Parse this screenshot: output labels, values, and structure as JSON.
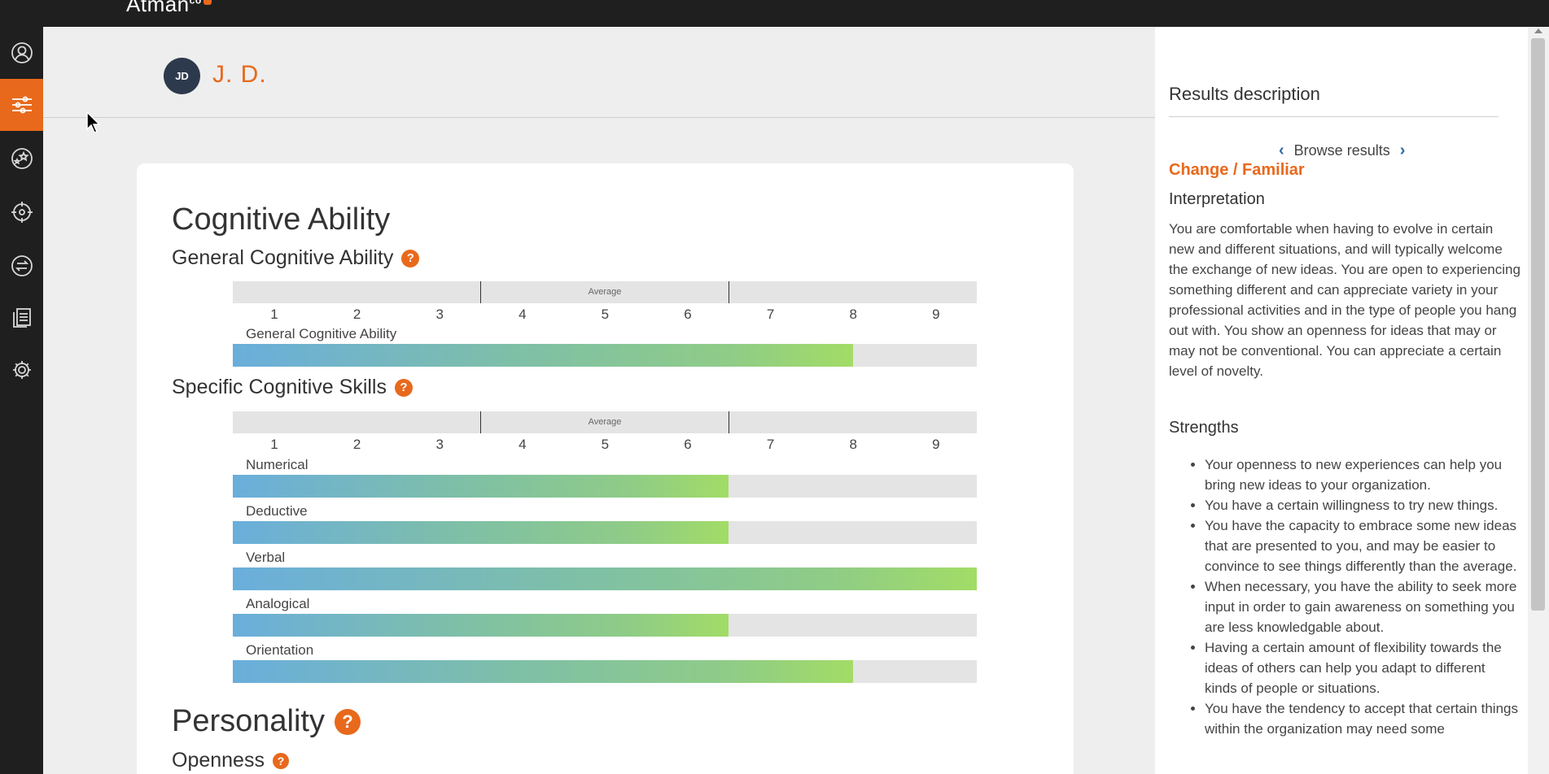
{
  "app": {
    "brand": "Atman",
    "brand_sup": "co"
  },
  "colors": {
    "accent": "#e8691c",
    "sidebar": "#1f1f1f",
    "avatar": "#2d3a4d",
    "nav_chevron": "#2f66a8"
  },
  "sidebar": {
    "items": [
      {
        "icon": "profile-icon",
        "active": false
      },
      {
        "icon": "sliders-icon",
        "active": true
      },
      {
        "icon": "stars-icon",
        "active": false
      },
      {
        "icon": "target-icon",
        "active": false
      },
      {
        "icon": "compare-icon",
        "active": false
      },
      {
        "icon": "documents-icon",
        "active": false
      },
      {
        "icon": "gear-icon",
        "active": false
      }
    ]
  },
  "header": {
    "avatar_initials": "JD",
    "user_name": "J. D."
  },
  "main": {
    "cognitive_title": "Cognitive Ability",
    "general_title": "General Cognitive Ability",
    "specific_title": "Specific Cognitive Skills",
    "personality_title": "Personality",
    "openness_title": "Openness",
    "help_glyph": "?",
    "scale": {
      "average_label": "Average",
      "ticks": [
        "1",
        "2",
        "3",
        "4",
        "5",
        "6",
        "7",
        "8",
        "9"
      ]
    },
    "general_bars": [
      {
        "label": "General Cognitive Ability",
        "score": 7.5,
        "max": 9
      }
    ],
    "specific_bars": [
      {
        "label": "Numerical",
        "score": 6,
        "max": 9
      },
      {
        "label": "Deductive",
        "score": 6,
        "max": 9
      },
      {
        "label": "Verbal",
        "score": 9,
        "max": 9
      },
      {
        "label": "Analogical",
        "score": 6,
        "max": 9
      },
      {
        "label": "Orientation",
        "score": 7.5,
        "max": 9
      }
    ]
  },
  "panel": {
    "title": "Results description",
    "browse_label": "Browse results",
    "prev_glyph": "‹",
    "next_glyph": "›",
    "result_name": "Change / Familiar",
    "interpretation_heading": "Interpretation",
    "interpretation_text": "You are comfortable when having to evolve in certain new and different situations, and will typically welcome the exchange of new ideas. You are open to experiencing something different and can appreciate variety in your professional activities and in the type of people you hang out with. You show an openness for ideas that may or may not be conventional. You can appreciate a certain level of novelty.",
    "strengths_heading": "Strengths",
    "strengths": [
      "Your openness to new experiences can help you bring new ideas to your organization.",
      "You have a certain willingness to try new things.",
      "You have the capacity to embrace some new ideas that are presented to you, and may be easier to convince to see things differently than the average.",
      "When necessary, you have the ability to seek more input in order to gain awareness on something you are less knowledgable about.",
      "Having a certain amount of flexibility towards the ideas of others can help you adapt to different kinds of people or situations.",
      "You have the tendency to accept that certain things within the organization may need some"
    ]
  }
}
